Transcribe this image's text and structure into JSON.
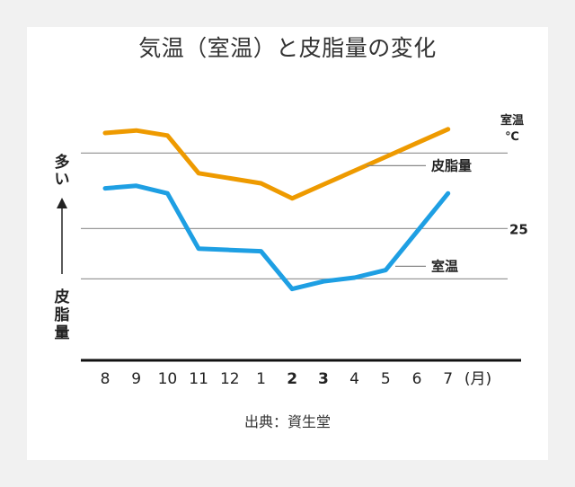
{
  "title": "気温（室温）と皮脂量の変化",
  "source": "出典：資生堂",
  "chart_data": {
    "type": "line",
    "title": "気温（室温）と皮脂量の変化",
    "categories": [
      "8",
      "9",
      "10",
      "11",
      "12",
      "1",
      "2",
      "3",
      "4",
      "5",
      "6",
      "7"
    ],
    "bold_categories": [
      "2",
      "3"
    ],
    "x_unit": "(月)",
    "left_axis_label_top": "多い",
    "left_axis_label_bottom": "皮脂量",
    "right_axis_label": "室温\n℃",
    "right_tick": "25",
    "grid": "horizontal",
    "series": [
      {
        "name": "皮脂量",
        "color": "#EE9A00",
        "values": [
          9.0,
          9.1,
          8.9,
          7.4,
          7.2,
          7.0,
          6.4,
          6.95,
          7.5,
          8.05,
          8.6,
          9.15
        ]
      },
      {
        "name": "室温",
        "color": "#1E9FE3",
        "values": [
          6.8,
          6.9,
          6.6,
          4.4,
          4.35,
          4.3,
          2.8,
          3.1,
          3.25,
          3.55,
          null,
          6.6
        ]
      }
    ],
    "ylim": [
      0,
      10
    ],
    "gridlines": [
      3.2,
      5.2,
      8.2
    ]
  }
}
